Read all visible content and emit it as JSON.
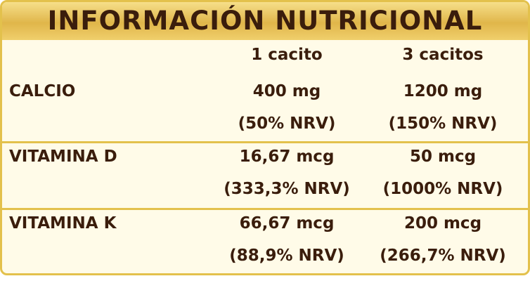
{
  "header": {
    "title": "INFORMACIÓN NUTRICIONAL"
  },
  "table": {
    "columns": [
      "1 cacito",
      "3 cacitos"
    ],
    "rows": [
      {
        "name": "CALCIO",
        "cells": [
          {
            "amount": "400 mg",
            "nrv": "(50% NRV)"
          },
          {
            "amount": "1200 mg",
            "nrv": "(150% NRV)"
          }
        ]
      },
      {
        "name": "VITAMINA D",
        "cells": [
          {
            "amount": "16,67 mcg",
            "nrv": "(333,3% NRV)"
          },
          {
            "amount": "50 mcg",
            "nrv": "(1000% NRV)"
          }
        ]
      },
      {
        "name": "VITAMINA K",
        "cells": [
          {
            "amount": "66,67 mcg",
            "nrv": "(88,9% NRV)"
          },
          {
            "amount": "200 mcg",
            "nrv": "(266,7% NRV)"
          }
        ]
      }
    ]
  }
}
